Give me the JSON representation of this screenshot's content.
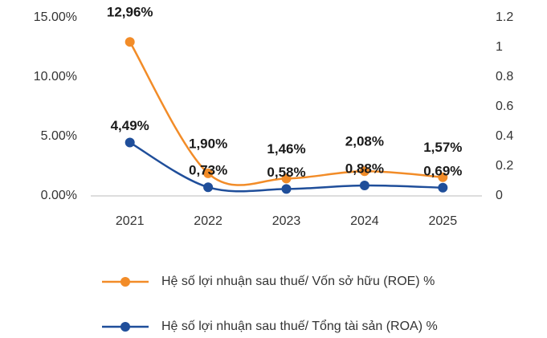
{
  "chart_data": {
    "type": "line",
    "categories": [
      "2021",
      "2022",
      "2023",
      "2024",
      "2025"
    ],
    "series": [
      {
        "name": "Hệ số lợi nhuận sau thuế/ Vốn sở hữu (ROE) %",
        "color": "#f28c28",
        "values": [
          12.96,
          1.9,
          1.46,
          2.08,
          1.57
        ],
        "value_labels": [
          "12,96%",
          "1,90%",
          "1,46%",
          "2,08%",
          "1,57%"
        ]
      },
      {
        "name": "Hệ số lợi nhuận sau thuế/ Tổng tài sản (ROA) %",
        "color": "#1f4e9a",
        "values": [
          4.49,
          0.73,
          0.58,
          0.88,
          0.69
        ],
        "value_labels": [
          "4,49%",
          "0,73%",
          "0,58%",
          "0,88%",
          "0,69%"
        ]
      }
    ],
    "ylim": [
      0,
      15
    ],
    "yticks": [
      {
        "value": 0,
        "label": "0.00%"
      },
      {
        "value": 5,
        "label": "5.00%"
      },
      {
        "value": 10,
        "label": "10.00%"
      },
      {
        "value": 15,
        "label": "15.00%"
      }
    ],
    "y2lim": [
      0,
      1.2
    ],
    "y2ticks": [
      0,
      0.2,
      0.4,
      0.6,
      0.8,
      1,
      1.2
    ],
    "smooth": true,
    "grid": false,
    "legend": "bottom"
  }
}
